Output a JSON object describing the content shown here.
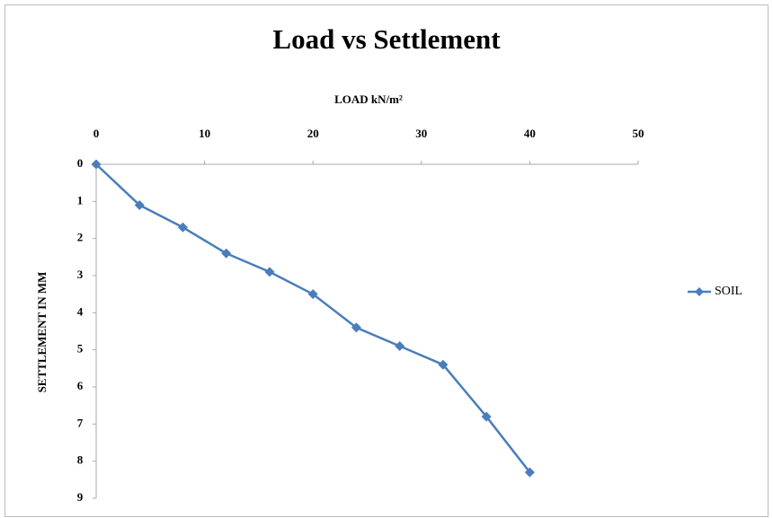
{
  "chart_data": {
    "type": "line",
    "title": "Load vs Settlement",
    "x_label": "LOAD kN/m²",
    "y_label": "SETTLEMENT IN MM",
    "x": [
      0,
      4,
      8,
      12,
      16,
      20,
      24,
      28,
      32,
      36,
      40
    ],
    "series": [
      {
        "name": "SOIL",
        "color": "#4a7ebb",
        "values": [
          0,
          1.1,
          1.7,
          2.4,
          2.9,
          3.5,
          4.4,
          4.9,
          5.4,
          6.8,
          8.3
        ]
      }
    ],
    "xlim": [
      0,
      50
    ],
    "xticks": [
      0,
      10,
      20,
      30,
      40,
      50
    ],
    "ylim": [
      0,
      9
    ],
    "yticks": [
      0,
      1,
      2,
      3,
      4,
      5,
      6,
      7,
      8,
      9
    ],
    "y_inverted": true,
    "x_axis_position": "top",
    "grid": false,
    "legend": "right"
  }
}
